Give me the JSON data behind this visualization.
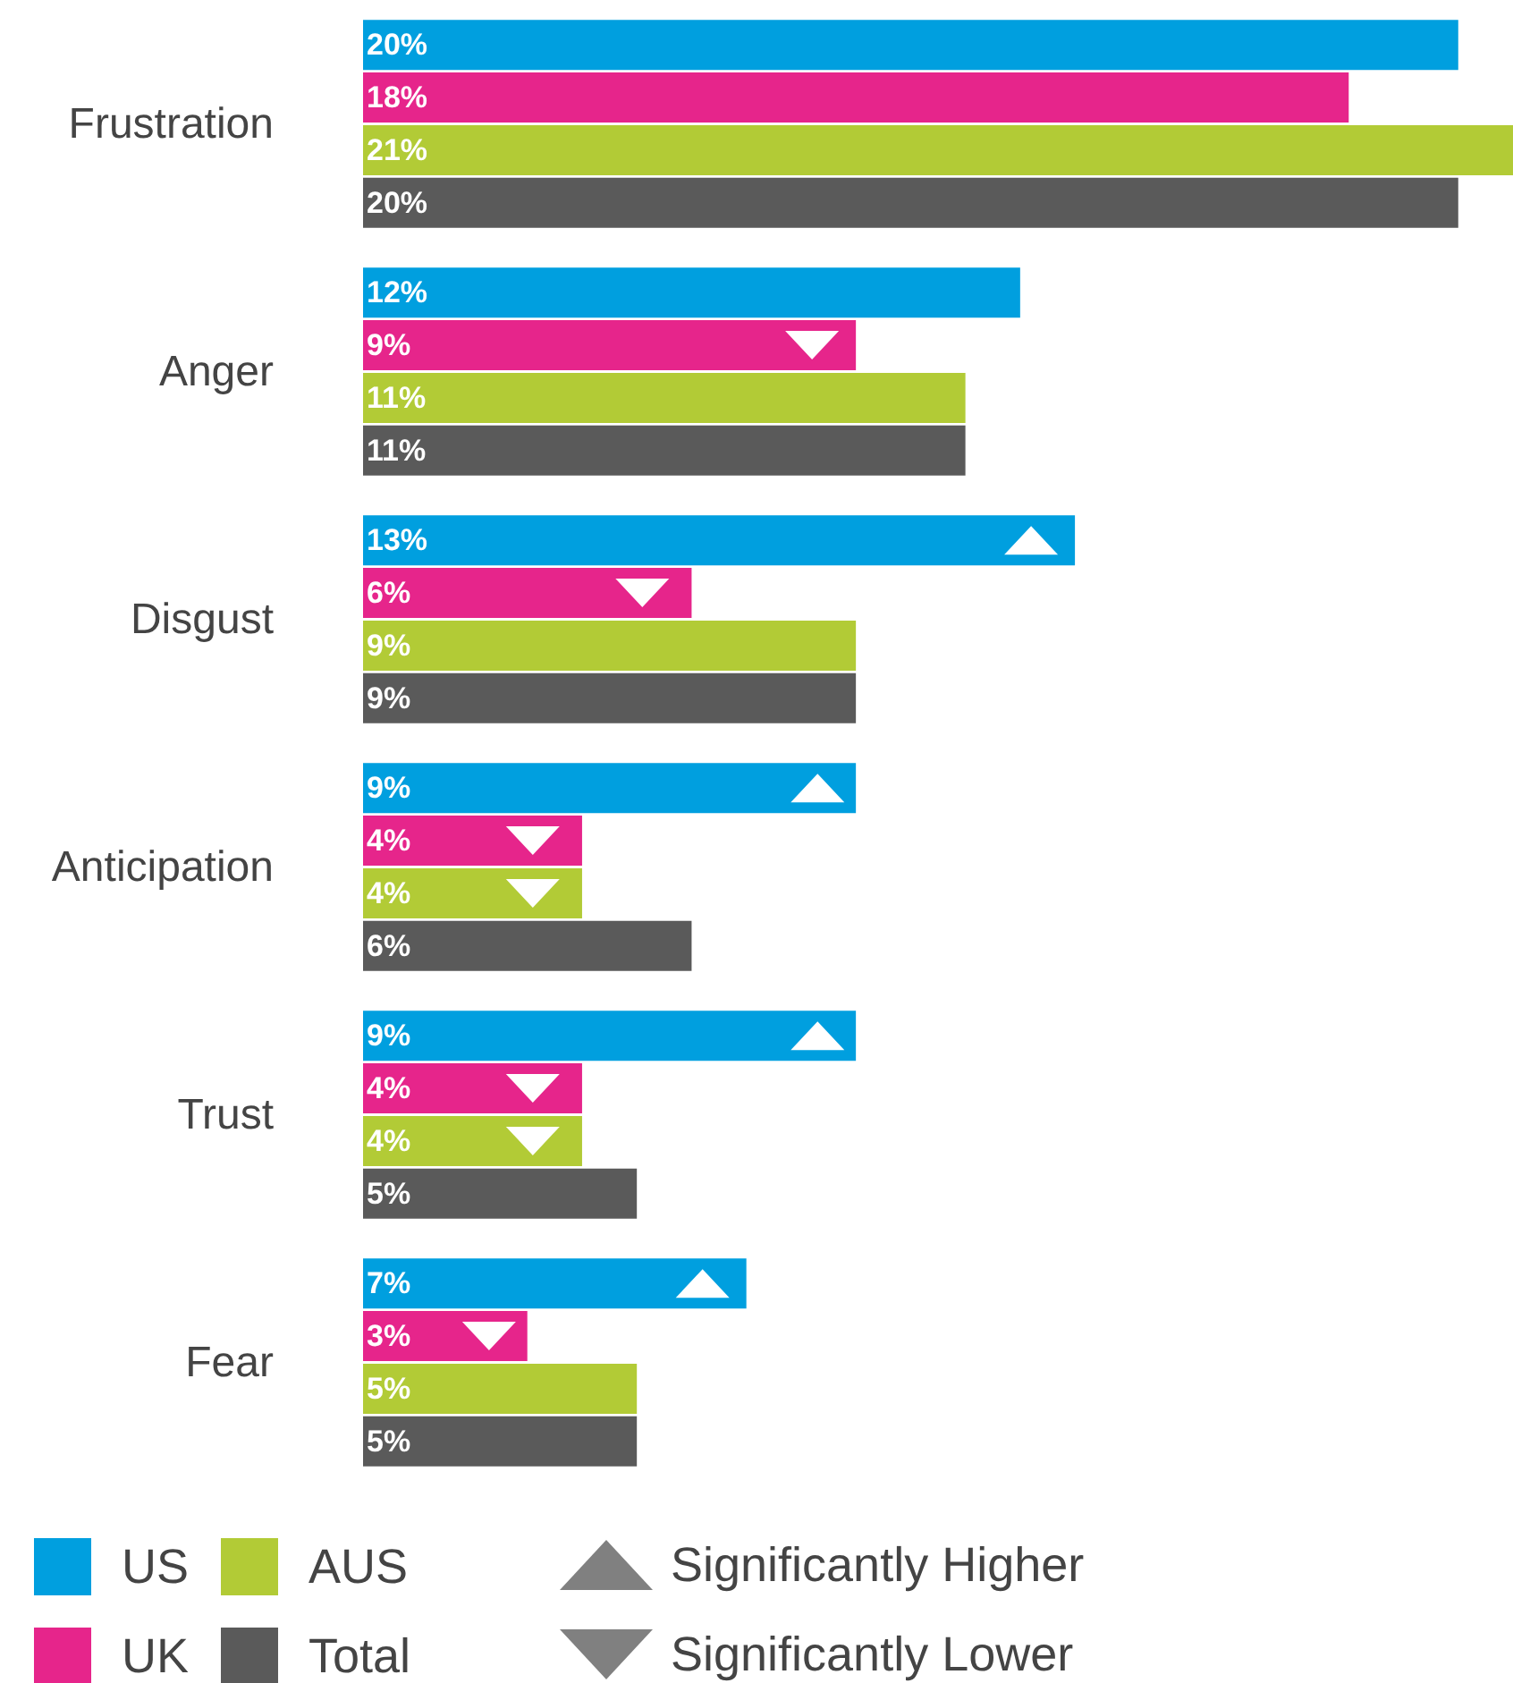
{
  "chart_data": {
    "type": "bar",
    "orientation": "horizontal",
    "categories": [
      "Frustration",
      "Anger",
      "Disgust",
      "Anticipation",
      "Trust",
      "Fear"
    ],
    "xlim": [
      0,
      21
    ],
    "tick_labels": "y",
    "legend": "bottom",
    "annotations": [
      "Significantly Higher",
      "Significantly Lower"
    ],
    "series": [
      {
        "name": "US",
        "color": "#009fdf",
        "values": [
          20,
          12,
          13,
          9,
          9,
          7
        ],
        "value_labels": [
          "20%",
          "12%",
          "13%",
          "9%",
          "9%",
          "7%"
        ]
      },
      {
        "type": "scatter",
        "marker": "triangle",
        "color": "#ffffff",
        "values": [
          null,
          null,
          12.2,
          8.3,
          8.3,
          6.2
        ]
      },
      {
        "name": "UK",
        "color": "#e6258b",
        "values": [
          18,
          9,
          6,
          4,
          4,
          3
        ],
        "value_labels": [
          "18%",
          "9%",
          "6%",
          "4%",
          "4%",
          "3%"
        ]
      },
      {
        "type": "scatter",
        "marker": "triangle-down",
        "color": "#ffffff",
        "values": [
          null,
          8.2,
          5.1,
          3.1,
          3.1,
          2.3
        ]
      },
      {
        "name": "AUS",
        "color": "#b2cb36",
        "values": [
          21,
          11,
          9,
          4,
          4,
          5
        ],
        "value_labels": [
          "21%",
          "11%",
          "9%",
          "4%",
          "4%",
          "5%"
        ]
      },
      {
        "type": "scatter",
        "marker": "triangle-down",
        "color": "#ffffff",
        "values": [
          null,
          null,
          null,
          3.1,
          3.1,
          null
        ]
      },
      {
        "name": "Total",
        "color": "#5a5a5a",
        "values": [
          20,
          11,
          9,
          6,
          5,
          5
        ],
        "value_labels": [
          "20%",
          "11%",
          "9%",
          "6%",
          "5%",
          "5%"
        ]
      }
    ]
  }
}
